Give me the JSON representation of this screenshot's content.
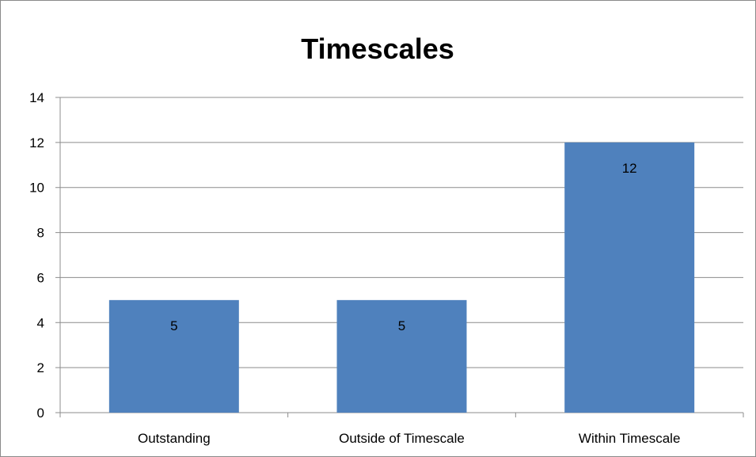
{
  "chart_data": {
    "type": "bar",
    "title": "Timescales",
    "xlabel": "",
    "ylabel": "",
    "categories": [
      "Outstanding",
      "Outside of Timescale",
      "Within Timescale"
    ],
    "values": [
      5,
      5,
      12
    ],
    "data_labels": [
      "5",
      "5",
      "12"
    ],
    "ylim": [
      0,
      14
    ],
    "y_ticks": [
      0,
      2,
      4,
      6,
      8,
      10,
      12,
      14
    ],
    "grid": true,
    "legend": "none",
    "colors": {
      "bar": "#4f81bd",
      "grid": "#8c8c8c",
      "axis": "#8c8c8c"
    }
  }
}
